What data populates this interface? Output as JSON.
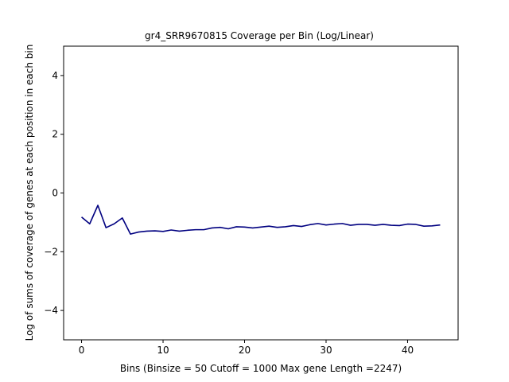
{
  "chart_data": {
    "type": "line",
    "title": "gr4_SRR9670815 Coverage per Bin (Log/Linear)",
    "xlabel": "Bins  (Binsize = 50 Cutoff = 1000 Max gene Length =2247)",
    "ylabel": "Log of sums of coverage of genes at each position in each bin",
    "xlim": [
      -2.2,
      46.2
    ],
    "ylim": [
      -5,
      5
    ],
    "xticks": [
      0,
      10,
      20,
      30,
      40
    ],
    "xtick_labels": [
      "0",
      "10",
      "20",
      "30",
      "40"
    ],
    "yticks": [
      -4,
      -2,
      0,
      2,
      4
    ],
    "ytick_labels": [
      "−4",
      "−2",
      "0",
      "2",
      "4"
    ],
    "grid": false,
    "series": [
      {
        "color": "#000080",
        "x": [
          0,
          1,
          2,
          3,
          4,
          5,
          6,
          7,
          8,
          9,
          10,
          11,
          12,
          13,
          14,
          15,
          16,
          17,
          18,
          19,
          20,
          21,
          22,
          23,
          24,
          25,
          26,
          27,
          28,
          29,
          30,
          31,
          32,
          33,
          34,
          35,
          36,
          37,
          38,
          39,
          40,
          41,
          42,
          43,
          44
        ],
        "y": [
          -0.82,
          -1.05,
          -0.42,
          -1.18,
          -1.05,
          -0.85,
          -1.4,
          -1.33,
          -1.3,
          -1.29,
          -1.31,
          -1.26,
          -1.3,
          -1.27,
          -1.25,
          -1.25,
          -1.19,
          -1.17,
          -1.22,
          -1.15,
          -1.16,
          -1.19,
          -1.16,
          -1.13,
          -1.17,
          -1.15,
          -1.11,
          -1.14,
          -1.08,
          -1.04,
          -1.09,
          -1.06,
          -1.04,
          -1.1,
          -1.07,
          -1.07,
          -1.1,
          -1.07,
          -1.1,
          -1.11,
          -1.06,
          -1.07,
          -1.13,
          -1.12,
          -1.09
        ]
      }
    ]
  }
}
